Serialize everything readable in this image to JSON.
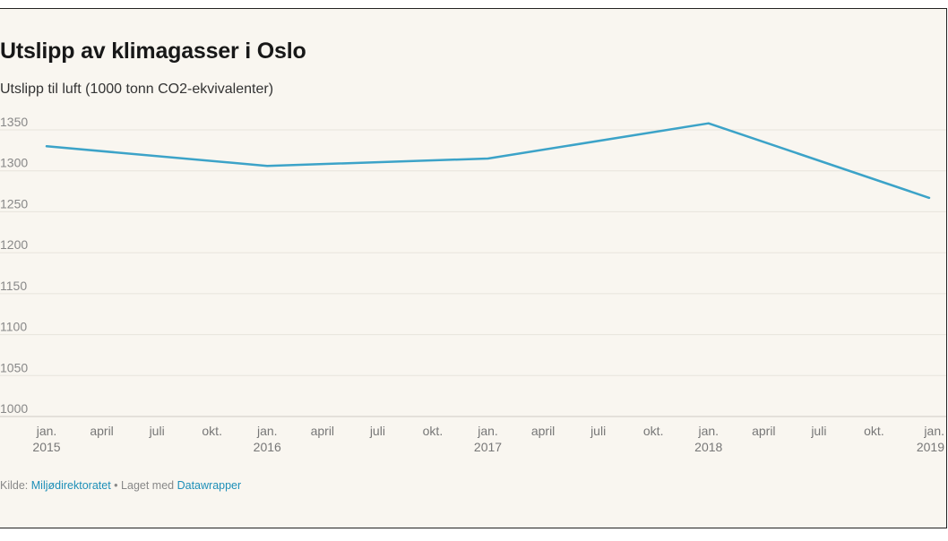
{
  "header": {
    "title": "Utslipp av klimagasser i Oslo",
    "subtitle": "Utslipp til luft (1000 tonn CO2-ekvivalenter)"
  },
  "footer": {
    "source_prefix": "Kilde:",
    "source_name": "Miljødirektoratet",
    "separator": "•",
    "made_with": "Laget med",
    "tool_name": "Datawrapper"
  },
  "colors": {
    "line": "#3ca3c8",
    "background": "#f9f6f0",
    "link": "#1d8fb8"
  },
  "chart_data": {
    "type": "line",
    "title": "Utslipp av klimagasser i Oslo",
    "subtitle": "Utslipp til luft (1000 tonn CO2-ekvivalenter)",
    "x": [
      "2015-01",
      "2016-01",
      "2017-01",
      "2018-01",
      "2019-01"
    ],
    "series": [
      {
        "values": [
          1330,
          1306,
          1315,
          1358,
          1267
        ]
      }
    ],
    "ylim": [
      1000,
      1350
    ],
    "yticks": [
      1000,
      1050,
      1100,
      1150,
      1200,
      1250,
      1300,
      1350
    ],
    "xticks": [
      {
        "line1": "jan.",
        "line2": "2015"
      },
      {
        "line1": "april",
        "line2": ""
      },
      {
        "line1": "juli",
        "line2": ""
      },
      {
        "line1": "okt.",
        "line2": ""
      },
      {
        "line1": "jan.",
        "line2": "2016"
      },
      {
        "line1": "april",
        "line2": ""
      },
      {
        "line1": "juli",
        "line2": ""
      },
      {
        "line1": "okt.",
        "line2": ""
      },
      {
        "line1": "jan.",
        "line2": "2017"
      },
      {
        "line1": "april",
        "line2": ""
      },
      {
        "line1": "juli",
        "line2": ""
      },
      {
        "line1": "okt.",
        "line2": ""
      },
      {
        "line1": "jan.",
        "line2": "2018"
      },
      {
        "line1": "april",
        "line2": ""
      },
      {
        "line1": "juli",
        "line2": ""
      },
      {
        "line1": "okt.",
        "line2": ""
      },
      {
        "line1": "jan.",
        "line2": "2019"
      }
    ],
    "grid": true
  }
}
